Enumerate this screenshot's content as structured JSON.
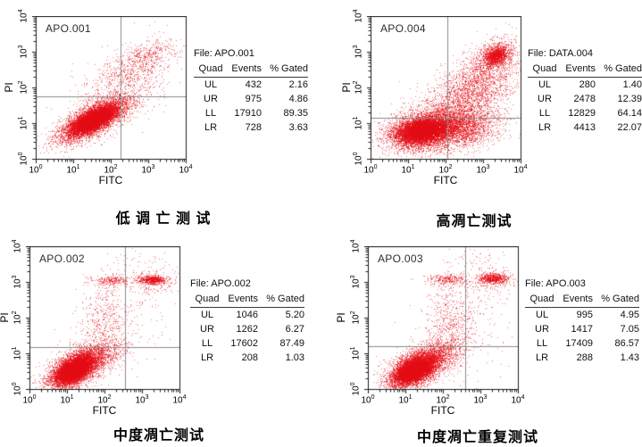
{
  "page": {
    "background": "#ffffff"
  },
  "chart_data": [
    {
      "type": "scatter",
      "inplot_label": "APO.001",
      "file_label": "File: APO.001",
      "title": "低 调 亡 测 试",
      "xlabel": "FITC",
      "ylabel": "PI",
      "x_axis": {
        "scale": "log10",
        "min_exp": 0,
        "max_exp": 4
      },
      "y_axis": {
        "scale": "log10",
        "min_exp": 0,
        "max_exp": 4
      },
      "x_tick_exponents": [
        0,
        1,
        2,
        3,
        4
      ],
      "y_tick_exponents": [
        0,
        1,
        2,
        3,
        4
      ],
      "quadrant_gate_log": {
        "x": 2.25,
        "y": 1.75
      },
      "stats_table": {
        "headers": [
          "Quad",
          "Events",
          "% Gated"
        ],
        "rows": [
          [
            "UL",
            "432",
            "2.16"
          ],
          [
            "UR",
            "975",
            "4.86"
          ],
          [
            "LL",
            "17910",
            "89.35"
          ],
          [
            "LR",
            "728",
            "3.63"
          ]
        ]
      },
      "point_color": "#e30b14",
      "clusters": [
        {
          "count": 3500,
          "cx": 1.55,
          "cy": 1.12,
          "sx": 0.5,
          "sy": 0.33,
          "rho": 0.72
        },
        {
          "count": 6000,
          "cx": 1.55,
          "cy": 1.1,
          "sx": 0.33,
          "sy": 0.22,
          "rho": 0.72
        },
        {
          "count": 3000,
          "cx": 1.52,
          "cy": 1.1,
          "sx": 0.22,
          "sy": 0.14,
          "rho": 0.6
        },
        {
          "count": 650,
          "cx": 2.55,
          "cy": 2.45,
          "sx": 0.55,
          "sy": 0.45,
          "rho": 0.55
        },
        {
          "count": 280,
          "cx": 3.05,
          "cy": 2.95,
          "sx": 0.38,
          "sy": 0.18,
          "rho": 0.3
        },
        {
          "count": 350,
          "cx": 2.1,
          "cy": 1.75,
          "sx": 0.75,
          "sy": 0.55,
          "rho": 0.5
        }
      ]
    },
    {
      "type": "scatter",
      "inplot_label": "APO.004",
      "file_label": "File: DATA.004",
      "title": "高凋亡测试",
      "xlabel": "FITC",
      "ylabel": "PI",
      "x_axis": {
        "scale": "log10",
        "min_exp": 0,
        "max_exp": 4
      },
      "y_axis": {
        "scale": "log10",
        "min_exp": 0,
        "max_exp": 4
      },
      "x_tick_exponents": [
        0,
        1,
        2,
        3,
        4
      ],
      "y_tick_exponents": [
        0,
        1,
        2,
        3,
        4
      ],
      "quadrant_gate_log": {
        "x": 2.05,
        "y": 1.15
      },
      "stats_table": {
        "headers": [
          "Quad",
          "Events",
          "% Gated"
        ],
        "rows": [
          [
            "UL",
            "280",
            "1.40"
          ],
          [
            "UR",
            "2478",
            "12.39"
          ],
          [
            "LL",
            "12829",
            "64.14"
          ],
          [
            "LR",
            "4413",
            "22.07"
          ]
        ]
      },
      "point_color": "#e30b14",
      "clusters": [
        {
          "count": 3000,
          "cx": 1.5,
          "cy": 0.82,
          "sx": 0.55,
          "sy": 0.3,
          "rho": 0.25
        },
        {
          "count": 6000,
          "cx": 1.4,
          "cy": 0.8,
          "sx": 0.38,
          "sy": 0.2,
          "rho": 0.3
        },
        {
          "count": 3000,
          "cx": 1.35,
          "cy": 0.78,
          "sx": 0.25,
          "sy": 0.13,
          "rho": 0.3
        },
        {
          "count": 2200,
          "cx": 2.45,
          "cy": 0.9,
          "sx": 0.5,
          "sy": 0.28,
          "rho": 0.2
        },
        {
          "count": 2000,
          "cx": 2.7,
          "cy": 1.9,
          "sx": 0.6,
          "sy": 0.5,
          "rho": 0.55
        },
        {
          "count": 1400,
          "cx": 3.35,
          "cy": 2.9,
          "sx": 0.17,
          "sy": 0.15,
          "rho": 0.3
        },
        {
          "count": 700,
          "cx": 3.2,
          "cy": 2.75,
          "sx": 0.4,
          "sy": 0.35,
          "rho": 0.5
        },
        {
          "count": 600,
          "cx": 2.3,
          "cy": 1.4,
          "sx": 0.8,
          "sy": 0.6,
          "rho": 0.4
        }
      ]
    },
    {
      "type": "scatter",
      "inplot_label": "APO.002",
      "file_label": "File: APO.002",
      "title": "中度凋亡测试",
      "xlabel": "FITC",
      "ylabel": "PI",
      "x_axis": {
        "scale": "log10",
        "min_exp": 0,
        "max_exp": 4
      },
      "y_axis": {
        "scale": "log10",
        "min_exp": 0,
        "max_exp": 4
      },
      "x_tick_exponents": [
        0,
        1,
        2,
        3,
        4
      ],
      "y_tick_exponents": [
        0,
        1,
        2,
        3,
        4
      ],
      "quadrant_gate_log": {
        "x": 2.55,
        "y": 1.18
      },
      "stats_table": {
        "headers": [
          "Quad",
          "Events",
          "% Gated"
        ],
        "rows": [
          [
            "UL",
            "1046",
            "5.20"
          ],
          [
            "UR",
            "1262",
            "6.27"
          ],
          [
            "LL",
            "17602",
            "87.49"
          ],
          [
            "LR",
            "208",
            "1.03"
          ]
        ]
      },
      "point_color": "#e30b14",
      "clusters": [
        {
          "count": 2500,
          "cx": 1.25,
          "cy": 0.6,
          "sx": 0.42,
          "sy": 0.33,
          "rho": 0.55
        },
        {
          "count": 6000,
          "cx": 1.2,
          "cy": 0.55,
          "sx": 0.28,
          "sy": 0.22,
          "rho": 0.55
        },
        {
          "count": 3500,
          "cx": 1.15,
          "cy": 0.52,
          "sx": 0.18,
          "sy": 0.14,
          "rho": 0.5
        },
        {
          "count": 700,
          "cx": 1.8,
          "cy": 0.95,
          "sx": 0.4,
          "sy": 0.25,
          "rho": 0.5
        },
        {
          "count": 450,
          "cx": 2.0,
          "cy": 1.9,
          "sx": 0.3,
          "sy": 0.6,
          "rho": 0.1
        },
        {
          "count": 260,
          "cx": 2.2,
          "cy": 3.05,
          "sx": 0.3,
          "sy": 0.07,
          "rho": 0
        },
        {
          "count": 650,
          "cx": 3.28,
          "cy": 3.07,
          "sx": 0.18,
          "sy": 0.06,
          "rho": 0
        },
        {
          "count": 180,
          "cx": 3.25,
          "cy": 3.0,
          "sx": 0.35,
          "sy": 0.18,
          "rho": 0.2
        },
        {
          "count": 220,
          "cx": 2.4,
          "cy": 2.0,
          "sx": 0.75,
          "sy": 0.8,
          "rho": 0.3
        },
        {
          "count": 40,
          "cx": 2.9,
          "cy": 3.55,
          "sx": 0.45,
          "sy": 0.18,
          "rho": 0
        }
      ]
    },
    {
      "type": "scatter",
      "inplot_label": "APO.003",
      "file_label": "File: APO.003",
      "title": "中度凋亡重复测试",
      "xlabel": "FITC",
      "ylabel": "PI",
      "x_axis": {
        "scale": "log10",
        "min_exp": 0,
        "max_exp": 4
      },
      "y_axis": {
        "scale": "log10",
        "min_exp": 0,
        "max_exp": 4
      },
      "x_tick_exponents": [
        0,
        1,
        2,
        3,
        4
      ],
      "y_tick_exponents": [
        0,
        1,
        2,
        3,
        4
      ],
      "quadrant_gate_log": {
        "x": 2.6,
        "y": 1.2
      },
      "stats_table": {
        "headers": [
          "Quad",
          "Events",
          "% Gated"
        ],
        "rows": [
          [
            "UL",
            "995",
            "4.95"
          ],
          [
            "UR",
            "1417",
            "7.05"
          ],
          [
            "LL",
            "17409",
            "86.57"
          ],
          [
            "LR",
            "288",
            "1.43"
          ]
        ]
      },
      "point_color": "#e30b14",
      "clusters": [
        {
          "count": 2500,
          "cx": 1.3,
          "cy": 0.6,
          "sx": 0.45,
          "sy": 0.33,
          "rho": 0.55
        },
        {
          "count": 6000,
          "cx": 1.25,
          "cy": 0.55,
          "sx": 0.3,
          "sy": 0.22,
          "rho": 0.55
        },
        {
          "count": 3500,
          "cx": 1.2,
          "cy": 0.52,
          "sx": 0.19,
          "sy": 0.14,
          "rho": 0.5
        },
        {
          "count": 700,
          "cx": 1.9,
          "cy": 0.95,
          "sx": 0.42,
          "sy": 0.28,
          "rho": 0.5
        },
        {
          "count": 500,
          "cx": 2.15,
          "cy": 1.9,
          "sx": 0.32,
          "sy": 0.6,
          "rho": 0.1
        },
        {
          "count": 300,
          "cx": 2.15,
          "cy": 3.08,
          "sx": 0.3,
          "sy": 0.08,
          "rho": 0
        },
        {
          "count": 650,
          "cx": 3.33,
          "cy": 3.1,
          "sx": 0.19,
          "sy": 0.07,
          "rho": 0
        },
        {
          "count": 180,
          "cx": 3.3,
          "cy": 3.05,
          "sx": 0.38,
          "sy": 0.2,
          "rho": 0.2
        },
        {
          "count": 260,
          "cx": 2.5,
          "cy": 1.9,
          "sx": 0.75,
          "sy": 0.8,
          "rho": 0.3
        },
        {
          "count": 50,
          "cx": 3.0,
          "cy": 3.6,
          "sx": 0.4,
          "sy": 0.18,
          "rho": 0
        }
      ]
    }
  ],
  "style": {
    "quadrant_line_color": "#8a8a8a",
    "frame_color": "#1c1c1c"
  }
}
